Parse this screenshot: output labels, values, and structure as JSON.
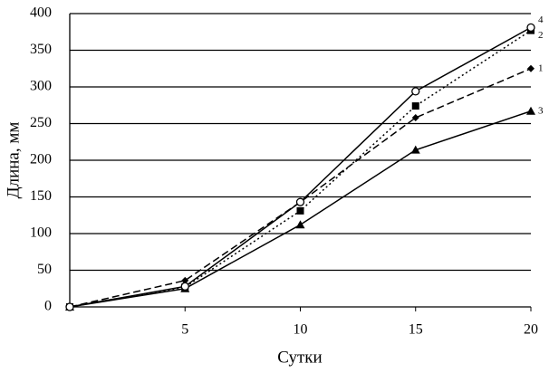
{
  "chart_data": {
    "type": "line",
    "x_label": "Сутки",
    "y_label": "Длина, мм",
    "x": [
      0,
      5,
      10,
      15,
      20
    ],
    "xlim": [
      0,
      20
    ],
    "xticks": [
      5,
      10,
      15,
      20
    ],
    "ylim": [
      0,
      400
    ],
    "yticks": [
      0,
      50,
      100,
      150,
      200,
      250,
      300,
      350,
      400
    ],
    "grid": true,
    "series": [
      {
        "name": "1",
        "color": "#000000",
        "marker": "diamond",
        "dash": "dashed",
        "values": [
          0,
          36,
          143,
          258,
          325
        ]
      },
      {
        "name": "2",
        "color": "#000000",
        "marker": "square",
        "dash": "dotted",
        "values": [
          0,
          27,
          131,
          274,
          377
        ]
      },
      {
        "name": "3",
        "color": "#000000",
        "marker": "triangle",
        "dash": "solid",
        "values": [
          0,
          25,
          112,
          214,
          267
        ]
      },
      {
        "name": "4",
        "color": "#000000",
        "marker": "circle",
        "dash": "solid",
        "values": [
          0,
          28,
          143,
          294,
          381
        ]
      }
    ]
  }
}
